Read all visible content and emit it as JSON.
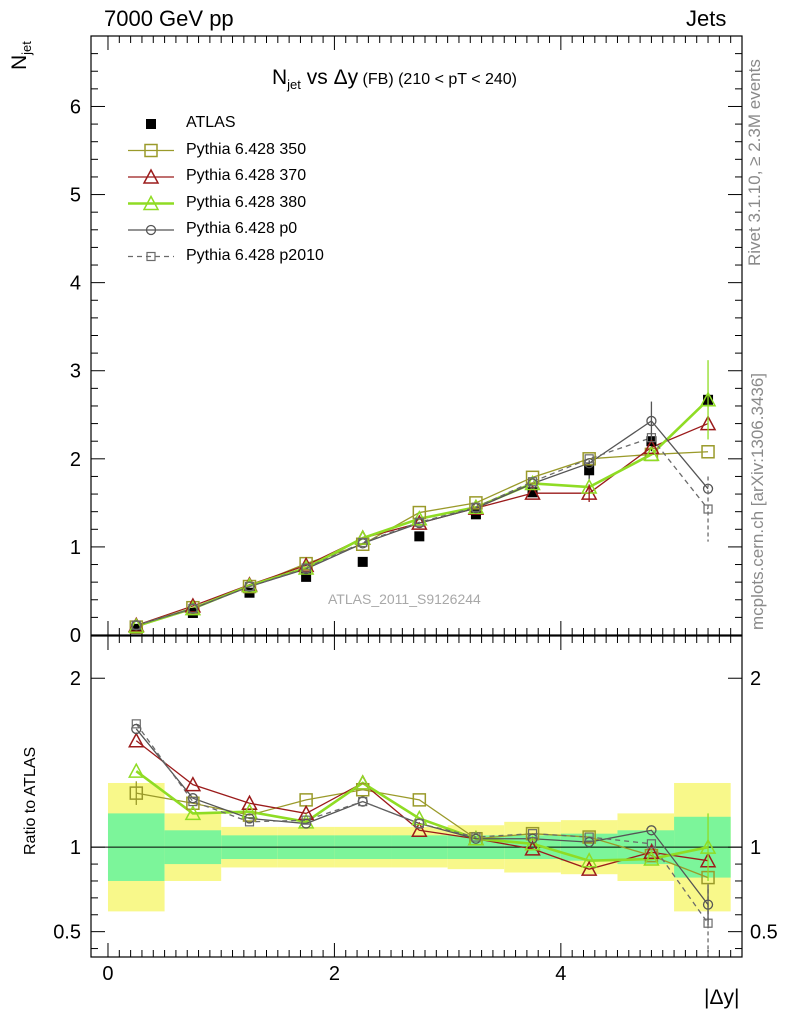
{
  "header": {
    "left": "7000 GeV pp",
    "right": "Jets",
    "title_main": "N",
    "title_sub": "jet",
    "title_rest": " vs Δy",
    "title_small": " (FB) (210 < pT < 240)",
    "watermark": "ATLAS_2011_S9126244"
  },
  "side_text": {
    "rivet": "Rivet 3.1.10, ≥ 2.3M events",
    "mcplots": "mcplots.cern.ch [arXiv:1306.3436]"
  },
  "axes": {
    "ylabel_top_main": "N",
    "ylabel_top_sub": "jet",
    "ylabel_ratio": "Ratio to ATLAS",
    "xlabel": "|Δy|"
  },
  "colors": {
    "data": "#000000",
    "p350": "#9a9a2a",
    "p370": "#9b1b1b",
    "p380": "#8fdc24",
    "p0": "#555555",
    "p2010": "#6a6a6a",
    "band_inner": "#7cf59a",
    "band_outer": "#f8f88a"
  },
  "legend": [
    {
      "key": "data",
      "label": "ATLAS"
    },
    {
      "key": "p350",
      "label": "Pythia 6.428 350"
    },
    {
      "key": "p370",
      "label": "Pythia 6.428 370"
    },
    {
      "key": "p380",
      "label": "Pythia 6.428 380"
    },
    {
      "key": "p0",
      "label": "Pythia 6.428 p0"
    },
    {
      "key": "p2010",
      "label": "Pythia 6.428 p2010"
    }
  ],
  "chart_data": [
    {
      "type": "line",
      "panel": "main",
      "xlim": [
        -0.15,
        5.6
      ],
      "ylim": [
        0,
        6.8
      ],
      "yticks": [
        0,
        1,
        2,
        3,
        4,
        5,
        6
      ],
      "x": [
        0.25,
        0.75,
        1.25,
        1.75,
        2.25,
        2.75,
        3.25,
        3.75,
        4.25,
        4.8,
        5.3
      ],
      "series": [
        {
          "name": "ATLAS",
          "key": "data",
          "values": [
            0.07,
            0.25,
            0.48,
            0.66,
            0.83,
            1.12,
            1.37,
            1.62,
            1.87,
            2.2,
            2.67
          ]
        },
        {
          "name": "Pythia 6.428 350",
          "key": "p350",
          "values": [
            0.09,
            0.31,
            0.55,
            0.81,
            1.03,
            1.39,
            1.5,
            1.79,
            2.0,
            2.05,
            2.08
          ]
        },
        {
          "name": "Pythia 6.428 370",
          "key": "p370",
          "values": [
            0.11,
            0.33,
            0.57,
            0.79,
            1.1,
            1.27,
            1.44,
            1.61,
            1.61,
            2.13,
            2.4
          ]
        },
        {
          "name": "Pythia 6.428 380",
          "key": "p380",
          "values": [
            0.1,
            0.3,
            0.56,
            0.76,
            1.1,
            1.32,
            1.45,
            1.72,
            1.68,
            2.05,
            2.67
          ]
        },
        {
          "name": "Pythia 6.428 p0",
          "key": "p0",
          "values": [
            0.11,
            0.3,
            0.55,
            0.75,
            1.04,
            1.27,
            1.44,
            1.72,
            1.95,
            2.43,
            1.66
          ]
        },
        {
          "name": "Pythia 6.428 p2010",
          "key": "p2010",
          "values": [
            0.11,
            0.3,
            0.55,
            0.76,
            1.05,
            1.28,
            1.45,
            1.74,
            2.0,
            2.24,
            1.43
          ]
        }
      ]
    },
    {
      "type": "line",
      "panel": "ratio",
      "xlim": [
        -0.15,
        5.6
      ],
      "ylim": [
        0.35,
        2.25
      ],
      "yticks": [
        0.5,
        1,
        2
      ],
      "xticks": [
        0,
        2,
        4
      ],
      "x": [
        0.25,
        0.75,
        1.25,
        1.75,
        2.25,
        2.75,
        3.25,
        3.75,
        4.25,
        4.8,
        5.3
      ],
      "band_edges": [
        0,
        0.5,
        1.0,
        1.5,
        2.0,
        2.5,
        3.0,
        3.5,
        4.0,
        4.5,
        5.0,
        5.5
      ],
      "band_inner": [
        0.2,
        0.1,
        0.07,
        0.07,
        0.07,
        0.07,
        0.07,
        0.07,
        0.08,
        0.1,
        0.18
      ],
      "band_outer": [
        0.38,
        0.2,
        0.12,
        0.12,
        0.12,
        0.12,
        0.13,
        0.15,
        0.16,
        0.2,
        0.38
      ],
      "series": [
        {
          "name": "Pythia 6.428 350",
          "key": "p350",
          "values": [
            1.32,
            1.26,
            1.19,
            1.28,
            1.34,
            1.28,
            1.05,
            1.08,
            1.06,
            0.95,
            0.82
          ]
        },
        {
          "name": "Pythia 6.428 370",
          "key": "p370",
          "values": [
            1.63,
            1.37,
            1.26,
            1.2,
            1.38,
            1.1,
            1.05,
            0.99,
            0.87,
            0.97,
            0.92
          ]
        },
        {
          "name": "Pythia 6.428 380",
          "key": "p380",
          "values": [
            1.45,
            1.2,
            1.21,
            1.15,
            1.38,
            1.17,
            1.05,
            1.02,
            0.92,
            0.93,
            1.0
          ]
        },
        {
          "name": "Pythia 6.428 p0",
          "key": "p0",
          "values": [
            1.7,
            1.29,
            1.17,
            1.14,
            1.27,
            1.14,
            1.05,
            1.05,
            1.03,
            1.1,
            0.66
          ]
        },
        {
          "name": "Pythia 6.428 p2010",
          "key": "p2010",
          "values": [
            1.73,
            1.27,
            1.15,
            1.16,
            1.27,
            1.14,
            1.06,
            1.08,
            1.06,
            1.02,
            0.55
          ]
        }
      ]
    }
  ]
}
